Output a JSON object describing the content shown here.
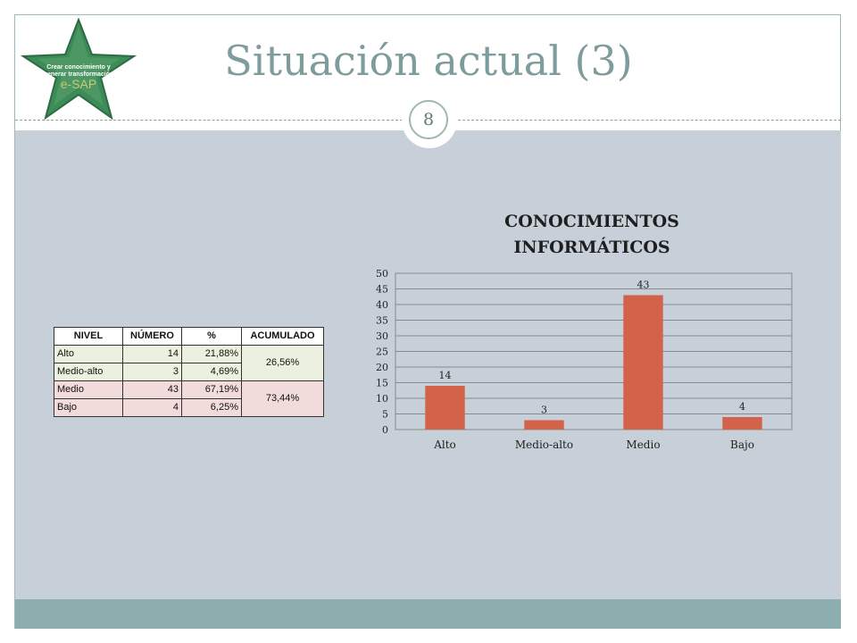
{
  "slide": {
    "title": "Situación actual (3)",
    "number": "8",
    "logo": {
      "line1": "Crear conocimiento y",
      "line2": "generar transformación",
      "brand": "e-SAP"
    }
  },
  "colors": {
    "bar": "#d2634a",
    "background": "#c7d0d8",
    "band": "#8caeae",
    "title": "#7f9c9c"
  },
  "table": {
    "headers": [
      "NIVEL",
      "NÚMERO",
      "%",
      "ACUMULADO"
    ],
    "rows": [
      {
        "nivel": "Alto",
        "numero": "14",
        "pct": "21,88%"
      },
      {
        "nivel": "Medio-alto",
        "numero": "3",
        "pct": "4,69%"
      },
      {
        "nivel": "Medio",
        "numero": "43",
        "pct": "67,19%"
      },
      {
        "nivel": "Bajo",
        "numero": "4",
        "pct": "6,25%"
      }
    ],
    "acumulado": [
      "26,56%",
      "73,44%"
    ]
  },
  "chart_data": {
    "type": "bar",
    "title": "CONOCIMIENTOS INFORMÁTICOS",
    "title_lines": [
      "CONOCIMIENTOS",
      "INFORMÁTICOS"
    ],
    "categories": [
      "Alto",
      "Medio-alto",
      "Medio",
      "Bajo"
    ],
    "values": [
      14,
      3,
      43,
      4
    ],
    "data_labels": [
      "14",
      "3",
      "43",
      "4"
    ],
    "ylim": [
      0,
      50
    ],
    "yticks": [
      0,
      5,
      10,
      15,
      20,
      25,
      30,
      35,
      40,
      45,
      50
    ],
    "grid": true,
    "legend": "none"
  }
}
